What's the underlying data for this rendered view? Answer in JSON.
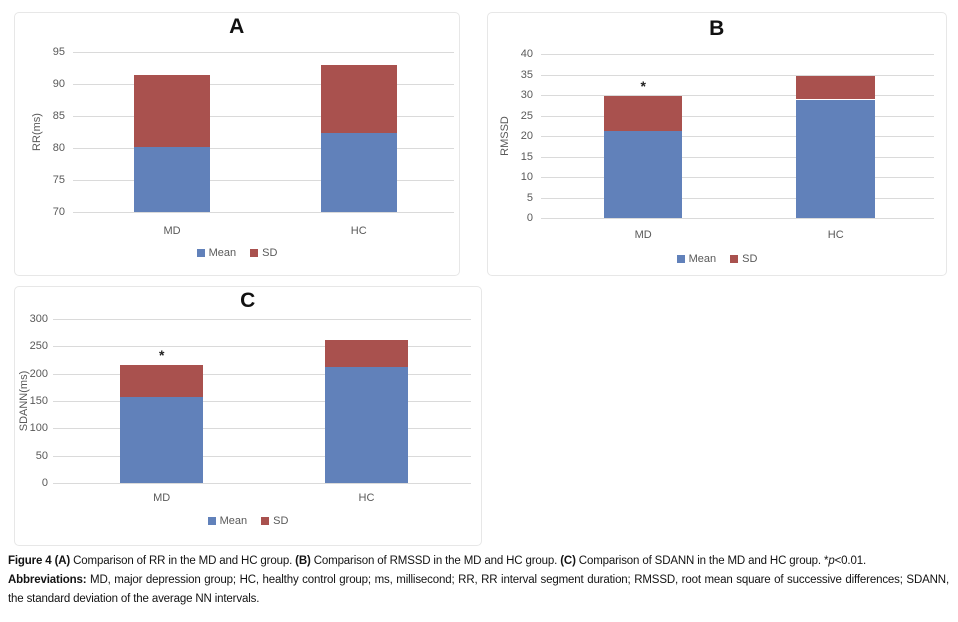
{
  "page": {
    "background": "#ffffff"
  },
  "colors": {
    "mean": "#6181BA",
    "sd": "#A9514E",
    "gridline": "#dadada",
    "axis_text": "#595959"
  },
  "chart_data": [
    {
      "id": "A",
      "type": "bar",
      "subtype": "stacked",
      "title": "A",
      "xlabel": "",
      "ylabel": "RR(ms)",
      "ylim": [
        70,
        95
      ],
      "ytick_step": 5,
      "grid": true,
      "legend_position": "bottom",
      "legend": [
        "Mean",
        "SD"
      ],
      "categories": [
        "MD",
        "HC"
      ],
      "series": [
        {
          "name": "Mean",
          "color": "#6181BA",
          "values": [
            80.1,
            82.3
          ]
        },
        {
          "name": "SD",
          "color": "#A9514E",
          "values": [
            11.3,
            10.7
          ]
        }
      ],
      "stack_totals": [
        91.4,
        93.0
      ],
      "annotations": []
    },
    {
      "id": "B",
      "type": "bar",
      "subtype": "stacked",
      "title": "B",
      "xlabel": "",
      "ylabel": "RMSSD",
      "ylim": [
        0,
        40
      ],
      "ytick_step": 5,
      "grid": true,
      "legend_position": "bottom",
      "legend": [
        "Mean",
        "SD"
      ],
      "categories": [
        "MD",
        "HC"
      ],
      "series": [
        {
          "name": "Mean",
          "color": "#6181BA",
          "values": [
            21.2,
            28.9
          ]
        },
        {
          "name": "SD",
          "color": "#A9514E",
          "values": [
            8.6,
            5.8
          ]
        }
      ],
      "stack_totals": [
        29.8,
        34.7
      ],
      "annotations": [
        {
          "category": "MD",
          "text": "*"
        }
      ]
    },
    {
      "id": "C",
      "type": "bar",
      "subtype": "stacked",
      "title": "C",
      "xlabel": "",
      "ylabel": "SDANN(ms)",
      "ylim": [
        0,
        300
      ],
      "ytick_step": 50,
      "grid": true,
      "legend_position": "bottom",
      "legend": [
        "Mean",
        "SD"
      ],
      "categories": [
        "MD",
        "HC"
      ],
      "series": [
        {
          "name": "Mean",
          "color": "#6181BA",
          "values": [
            158,
            213
          ]
        },
        {
          "name": "SD",
          "color": "#A9514E",
          "values": [
            58,
            48
          ]
        }
      ],
      "stack_totals": [
        216,
        261
      ],
      "annotations": [
        {
          "category": "MD",
          "text": "*"
        }
      ]
    }
  ],
  "caption": {
    "paragraphs": [
      {
        "segments": [
          {
            "t": "Figure 4 ",
            "s": "b"
          },
          {
            "t": "(A)",
            "s": "b"
          },
          {
            "t": " Comparison of RR in the MD and HC group. ",
            "s": ""
          },
          {
            "t": "(B)",
            "s": "b"
          },
          {
            "t": " Comparison of RMSSD in the MD and HC group. ",
            "s": ""
          },
          {
            "t": "(C)",
            "s": "b"
          },
          {
            "t": " Comparison of SDANN in the MD and HC group. *",
            "s": ""
          },
          {
            "t": "p",
            "s": "i"
          },
          {
            "t": "<0.01.",
            "s": ""
          }
        ]
      },
      {
        "segments": [
          {
            "t": "Abbreviations: ",
            "s": "b"
          },
          {
            "t": "MD, major depression group; HC, healthy control group; ms, millisecond; RR, RR interval segment duration; RMSSD, root mean square of successive differences; SDANN, the standard deviation of the average NN intervals.",
            "s": ""
          }
        ]
      }
    ]
  }
}
